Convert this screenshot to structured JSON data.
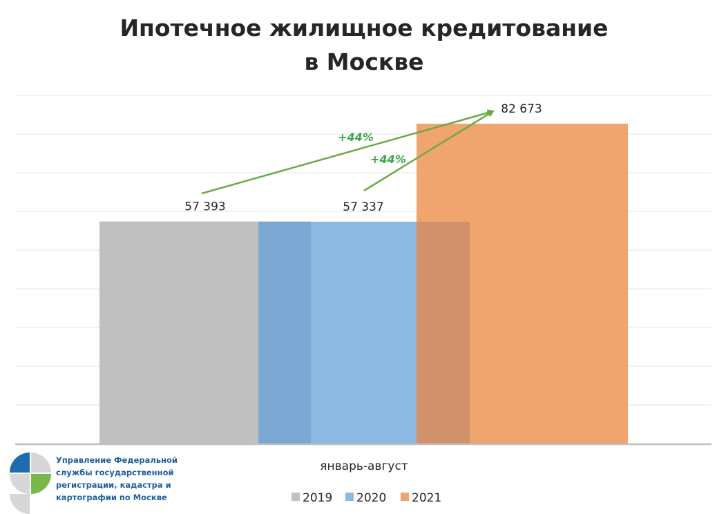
{
  "colors": {
    "series_2019": "#c0c0c0",
    "series_2020": "#8db8e2",
    "series_2021": "#f0a46e",
    "overlap_2019_2020": "#7ba7d2",
    "overlap_2020_2021": "#d1916a",
    "growth_arrow": "#6aaa45",
    "growth_text": "#3aa64a",
    "grid": "#e6e6e6",
    "axis": "#bfbfbf",
    "org_text": "#1f5fa0",
    "logo_blue": "#1f6bb0",
    "logo_green": "#79b84a",
    "logo_gray": "#d7d7d7"
  },
  "chart_data": {
    "type": "bar",
    "title_lines": [
      "Ипотечное жилищное кредитование",
      "в Москве"
    ],
    "categories": [
      "январь-август"
    ],
    "series": [
      {
        "name": "2019",
        "values": [
          57393
        ],
        "label": "57 393"
      },
      {
        "name": "2020",
        "values": [
          57337
        ],
        "label": "57 337"
      },
      {
        "name": "2021",
        "values": [
          82673
        ],
        "label": "82 673"
      }
    ],
    "ylim": [
      0,
      90000
    ],
    "gridlines": [
      10000,
      20000,
      30000,
      40000,
      50000,
      60000,
      70000,
      80000,
      90000
    ],
    "grid": true,
    "legend_position": "bottom",
    "overlapping_bars": true,
    "annotations": [
      {
        "text": "+44%",
        "from_series": "2019",
        "to_series": "2021"
      },
      {
        "text": "+44%",
        "from_series": "2020",
        "to_series": "2021"
      }
    ]
  },
  "organization": {
    "lines": [
      "Управление Федеральной",
      "службы государственной",
      "регистрации, кадастра и",
      "картографии по Москве"
    ],
    "logo": "rosreestr-logo"
  }
}
